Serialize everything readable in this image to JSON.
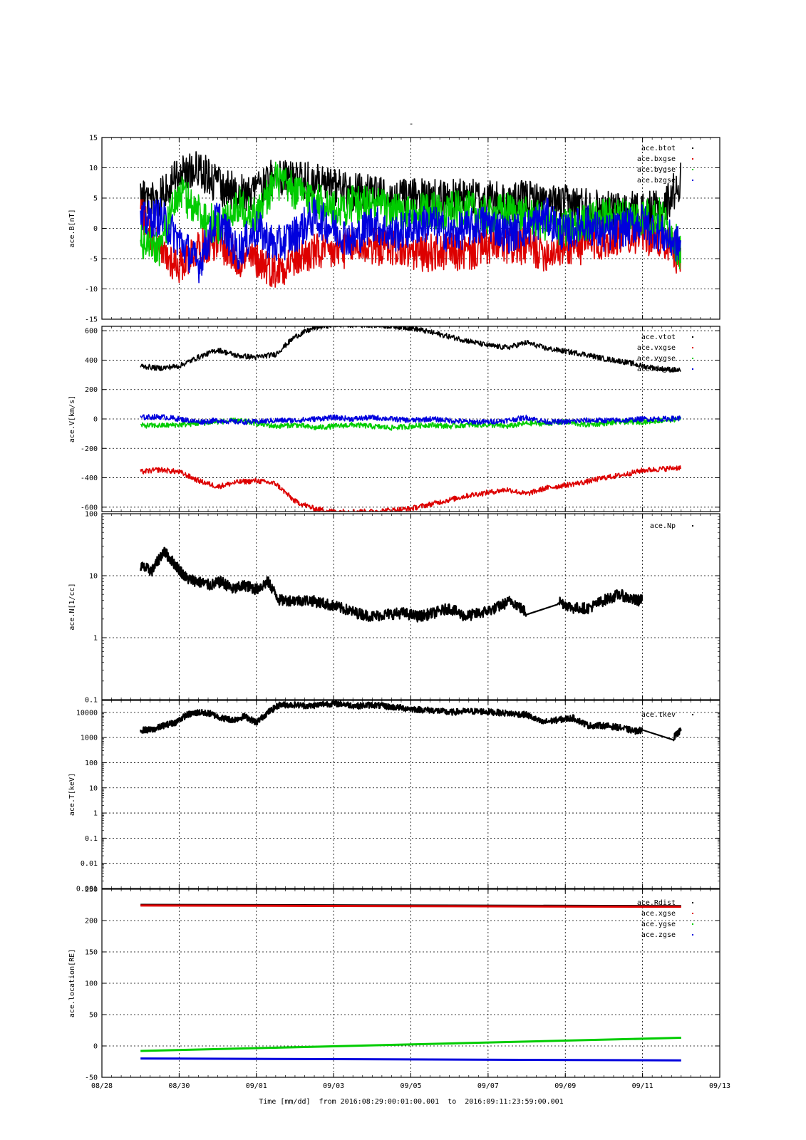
{
  "figure": {
    "title": "-",
    "xlabel": "Time [mm/dd]  from 2016:08:29:00:01:00.001  to  2016:09:11:23:59:00.001",
    "x_tick_labels": [
      "08/28",
      "08/30",
      "09/01",
      "09/03",
      "09/05",
      "09/07",
      "09/09",
      "09/11",
      "09/13"
    ],
    "colors": {
      "black": "#000000",
      "red": "#dd0000",
      "green": "#00cc00",
      "blue": "#0000dd"
    }
  },
  "chart_data": [
    {
      "type": "scatter",
      "ylabel": "ace.B[nT]",
      "ylim": [
        -15,
        15
      ],
      "yticks": [
        -15,
        -10,
        -5,
        0,
        5,
        10,
        15
      ],
      "grid": true,
      "legend_position": "top-right",
      "series": [
        {
          "name": "ace.btot",
          "color": "#000000",
          "x": [
            "08/29",
            "08/29.5",
            "08/30",
            "08/30.5",
            "08/31",
            "08/31.5",
            "09/01",
            "09/01.5",
            "09/02",
            "09/02.5",
            "09/03",
            "09/03.5",
            "09/04",
            "09/04.5",
            "09/05",
            "09/05.5",
            "09/06",
            "09/06.5",
            "09/07",
            "09/07.5",
            "09/08",
            "09/08.5",
            "09/09",
            "09/09.5",
            "09/10",
            "09/10.5",
            "09/11",
            "09/11.5",
            "09/12"
          ],
          "y": [
            5,
            5,
            9,
            10,
            7,
            6,
            6,
            9,
            8,
            8,
            7,
            6,
            6,
            5,
            5,
            5,
            5,
            5,
            5,
            4,
            5,
            4,
            4,
            4,
            3,
            3,
            3,
            3,
            8
          ]
        },
        {
          "name": "ace.bxgse",
          "color": "#dd0000",
          "x": [
            "08/29",
            "08/29.5",
            "08/30",
            "08/30.5",
            "08/31",
            "08/31.5",
            "09/01",
            "09/01.5",
            "09/02",
            "09/02.5",
            "09/03",
            "09/03.5",
            "09/04",
            "09/04.5",
            "09/05",
            "09/05.5",
            "09/06",
            "09/06.5",
            "09/07",
            "09/07.5",
            "09/08",
            "09/08.5",
            "09/09",
            "09/09.5",
            "09/10",
            "09/10.5",
            "09/11",
            "09/11.5",
            "09/12"
          ],
          "y": [
            3,
            -4,
            -6,
            -3,
            -2,
            -5,
            -5,
            -7,
            -5,
            -4,
            -4,
            -3,
            -3,
            -3,
            -4,
            -4,
            -4,
            -4,
            -3,
            -3,
            -3,
            -4,
            -3,
            -3,
            -2,
            -1,
            -1,
            -2,
            -5
          ]
        },
        {
          "name": "ace.bygse",
          "color": "#00cc00",
          "x": [
            "08/29",
            "08/29.5",
            "08/30",
            "08/30.5",
            "08/31",
            "08/31.5",
            "09/01",
            "09/01.5",
            "09/02",
            "09/02.5",
            "09/03",
            "09/03.5",
            "09/04",
            "09/04.5",
            "09/05",
            "09/05.5",
            "09/06",
            "09/06.5",
            "09/07",
            "09/07.5",
            "09/08",
            "09/08.5",
            "09/09",
            "09/09.5",
            "09/10",
            "09/10.5",
            "09/11",
            "09/11.5",
            "09/12"
          ],
          "y": [
            -2,
            -3,
            6,
            3,
            0,
            4,
            2,
            8,
            6,
            5,
            3,
            4,
            4,
            3,
            2,
            3,
            3,
            3,
            2,
            3,
            2,
            1,
            0,
            1,
            2,
            2,
            2,
            2,
            -4
          ]
        },
        {
          "name": "ace.bzgse",
          "color": "#0000dd",
          "x": [
            "08/29",
            "08/29.5",
            "08/30",
            "08/30.5",
            "08/31",
            "08/31.5",
            "09/01",
            "09/01.5",
            "09/02",
            "09/02.5",
            "09/03",
            "09/03.5",
            "09/04",
            "09/04.5",
            "09/05",
            "09/05.5",
            "09/06",
            "09/06.5",
            "09/07",
            "09/07.5",
            "09/08",
            "09/08.5",
            "09/09",
            "09/09.5",
            "09/10",
            "09/10.5",
            "09/11",
            "09/11.5",
            "09/12"
          ],
          "y": [
            1,
            2,
            -2,
            -6,
            2,
            -4,
            0,
            -3,
            -1,
            2,
            0,
            -2,
            1,
            -1,
            0,
            1,
            -1,
            0,
            1,
            -1,
            0,
            2,
            -1,
            1,
            -1,
            0,
            1,
            -1,
            -3
          ]
        }
      ]
    },
    {
      "type": "scatter",
      "ylabel": "ace.V[km/s]",
      "ylim": [
        -630,
        630
      ],
      "yticks": [
        -600,
        -400,
        -200,
        0,
        200,
        400,
        600
      ],
      "grid": true,
      "legend_position": "top-right",
      "series": [
        {
          "name": "ace.vtot",
          "color": "#000000",
          "x": [
            "08/29",
            "08/29.5",
            "08/30",
            "08/30.5",
            "08/31",
            "08/31.5",
            "09/01",
            "09/01.5",
            "09/02",
            "09/02.5",
            "09/03",
            "09/03.5",
            "09/04",
            "09/04.5",
            "09/05",
            "09/05.5",
            "09/06",
            "09/06.5",
            "09/07",
            "09/07.5",
            "09/08",
            "09/08.5",
            "09/09",
            "09/09.5",
            "09/10",
            "09/10.5",
            "09/11",
            "09/11.5",
            "09/12"
          ],
          "y": [
            360,
            345,
            360,
            420,
            470,
            430,
            420,
            440,
            560,
            620,
            640,
            640,
            640,
            630,
            620,
            590,
            560,
            530,
            500,
            485,
            520,
            480,
            460,
            440,
            410,
            390,
            360,
            340,
            330
          ]
        },
        {
          "name": "ace.vxgse",
          "color": "#dd0000",
          "x": [
            "08/29",
            "08/29.5",
            "08/30",
            "08/30.5",
            "08/31",
            "08/31.5",
            "09/01",
            "09/01.5",
            "09/02",
            "09/02.5",
            "09/03",
            "09/03.5",
            "09/04",
            "09/04.5",
            "09/05",
            "09/05.5",
            "09/06",
            "09/06.5",
            "09/07",
            "09/07.5",
            "09/08",
            "09/08.5",
            "09/09",
            "09/09.5",
            "09/10",
            "09/10.5",
            "09/11",
            "09/11.5",
            "09/12"
          ],
          "y": [
            -360,
            -345,
            -360,
            -420,
            -460,
            -430,
            -420,
            -440,
            -560,
            -610,
            -630,
            -630,
            -630,
            -620,
            -610,
            -580,
            -550,
            -520,
            -500,
            -480,
            -510,
            -470,
            -450,
            -430,
            -400,
            -380,
            -350,
            -340,
            -330
          ]
        },
        {
          "name": "ace.vygse",
          "color": "#00cc00",
          "x": [
            "08/29",
            "08/29.5",
            "08/30",
            "08/30.5",
            "08/31",
            "08/31.5",
            "09/01",
            "09/01.5",
            "09/02",
            "09/02.5",
            "09/03",
            "09/03.5",
            "09/04",
            "09/04.5",
            "09/05",
            "09/05.5",
            "09/06",
            "09/06.5",
            "09/07",
            "09/07.5",
            "09/08",
            "09/08.5",
            "09/09",
            "09/09.5",
            "09/10",
            "09/10.5",
            "09/11",
            "09/11.5",
            "09/12"
          ],
          "y": [
            -45,
            -45,
            -40,
            -30,
            -20,
            -10,
            -30,
            -50,
            -40,
            -60,
            -50,
            -40,
            -50,
            -60,
            -50,
            -40,
            -50,
            -40,
            -40,
            -50,
            -30,
            -30,
            -20,
            -40,
            -30,
            -20,
            -20,
            -10,
            0
          ]
        },
        {
          "name": "ace.vzgse",
          "color": "#0000dd",
          "x": [
            "08/29",
            "08/29.5",
            "08/30",
            "08/30.5",
            "08/31",
            "08/31.5",
            "09/01",
            "09/01.5",
            "09/02",
            "09/02.5",
            "09/03",
            "09/03.5",
            "09/04",
            "09/04.5",
            "09/05",
            "09/05.5",
            "09/06",
            "09/06.5",
            "09/07",
            "09/07.5",
            "09/08",
            "09/08.5",
            "09/09",
            "09/09.5",
            "09/10",
            "09/10.5",
            "09/11",
            "09/11.5",
            "09/12"
          ],
          "y": [
            10,
            15,
            0,
            -20,
            -10,
            -20,
            -20,
            -10,
            -10,
            0,
            10,
            0,
            10,
            0,
            -10,
            0,
            -10,
            -20,
            -20,
            -10,
            10,
            -20,
            -20,
            -10,
            -10,
            -10,
            0,
            0,
            5
          ]
        }
      ]
    },
    {
      "type": "scatter",
      "ylabel": "ace.N[1/cc]",
      "yscale": "log",
      "ylim": [
        0.1,
        100
      ],
      "yticks": [
        0.1,
        1,
        10,
        100
      ],
      "grid": true,
      "legend_position": "top-right",
      "series": [
        {
          "name": "ace.Np",
          "color": "#000000",
          "x": [
            "08/29",
            "08/29.3",
            "08/29.6",
            "08/29.9",
            "08/30.2",
            "08/30.5",
            "08/30.8",
            "08/31.1",
            "08/31.4",
            "08/31.7",
            "09/01",
            "09/01.3",
            "09/01.6",
            "09/02",
            "09/02.4",
            "09/02.8",
            "09/03.2",
            "09/03.6",
            "09/04",
            "09/04.4",
            "09/04.8",
            "09/05.2",
            "09/05.6",
            "09/06",
            "09/06.4",
            "09/06.8",
            "09/07.2",
            "09/07.6",
            "09/08",
            "09/08.4",
            "09/08.8",
            "09/09.2",
            "09/09.6",
            "09/10",
            "09/10.4",
            "09/10.8",
            "09/11"
          ],
          "y": [
            14,
            12,
            25,
            15,
            9,
            8,
            7,
            8,
            6,
            7,
            6,
            8,
            4,
            4,
            4,
            3.5,
            3,
            2.5,
            2.2,
            2.4,
            2.5,
            2.2,
            2.5,
            3,
            2.2,
            2.5,
            3,
            4,
            2.5,
            null,
            4,
            3,
            3,
            4,
            5,
            4,
            4
          ]
        }
      ]
    },
    {
      "type": "scatter",
      "ylabel": "ace.T[keV]",
      "yscale": "log",
      "ylim": [
        0.001,
        30000
      ],
      "yticks": [
        0.001,
        0.01,
        0.1,
        1,
        10,
        100,
        1000,
        10000
      ],
      "ytick_labels": [
        "0.001",
        "0.01",
        "0.1",
        "1",
        "10",
        "100",
        "1000",
        "10000"
      ],
      "grid": true,
      "legend_position": "top-right",
      "series": [
        {
          "name": "ace.tkev",
          "color": "#000000",
          "x": [
            "08/29",
            "08/29.3",
            "08/29.6",
            "08/29.9",
            "08/30.2",
            "08/30.5",
            "08/30.8",
            "08/31.1",
            "08/31.4",
            "08/31.7",
            "09/01",
            "09/01.3",
            "09/01.6",
            "09/02",
            "09/02.4",
            "09/02.8",
            "09/03.2",
            "09/03.6",
            "09/04",
            "09/04.4",
            "09/04.8",
            "09/05.2",
            "09/05.6",
            "09/06",
            "09/06.4",
            "09/06.8",
            "09/07.2",
            "09/07.6",
            "09/08",
            "09/08.4",
            "09/08.8",
            "09/09.2",
            "09/09.6",
            "09/10",
            "09/10.4",
            "09/10.8",
            "09/11",
            "09/11.5",
            "09/11.8",
            "09/12"
          ],
          "y": [
            2000,
            2000,
            3000,
            4000,
            8000,
            10000,
            9000,
            6000,
            5000,
            7000,
            4000,
            10000,
            20000,
            20000,
            18000,
            22000,
            22000,
            18000,
            20000,
            17000,
            15000,
            13000,
            12000,
            10000,
            11000,
            11000,
            10000,
            9000,
            8000,
            4000,
            5000,
            6000,
            3000,
            3000,
            2500,
            1800,
            2000,
            null,
            1000,
            2000
          ]
        }
      ]
    },
    {
      "type": "line",
      "ylabel": "ace.location[RE]",
      "ylim": [
        -50,
        250
      ],
      "yticks": [
        -50,
        0,
        50,
        100,
        150,
        200,
        250
      ],
      "grid": true,
      "legend_position": "top-right",
      "series": [
        {
          "name": "ace.Rdist",
          "color": "#000000",
          "x": [
            "08/29",
            "09/12"
          ],
          "y": [
            225,
            223
          ]
        },
        {
          "name": "ace.xgse",
          "color": "#dd0000",
          "x": [
            "08/29",
            "09/12"
          ],
          "y": [
            224,
            222
          ]
        },
        {
          "name": "ace.ygse",
          "color": "#00cc00",
          "x": [
            "08/29",
            "09/12"
          ],
          "y": [
            -8,
            13
          ]
        },
        {
          "name": "ace.zgse",
          "color": "#0000dd",
          "x": [
            "08/29",
            "09/12"
          ],
          "y": [
            -20,
            -23
          ]
        }
      ]
    }
  ]
}
